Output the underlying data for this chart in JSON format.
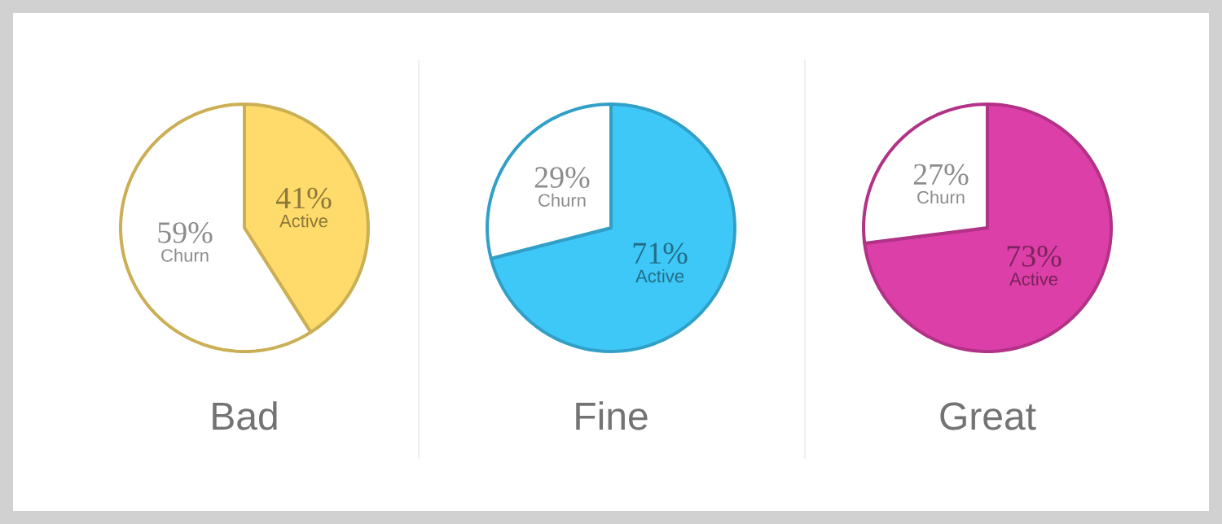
{
  "chart_data": [
    {
      "type": "pie",
      "title": "Bad",
      "categories": [
        "Churn",
        "Active"
      ],
      "values": [
        59,
        41
      ],
      "value_labels": [
        "59%",
        "41%"
      ],
      "colors": [
        "#ffffff",
        "#fedb6a"
      ]
    },
    {
      "type": "pie",
      "title": "Fine",
      "categories": [
        "Churn",
        "Active"
      ],
      "values": [
        29,
        71
      ],
      "value_labels": [
        "29%",
        "71%"
      ],
      "colors": [
        "#ffffff",
        "#3ec8f8"
      ]
    },
    {
      "type": "pie",
      "title": "Great",
      "categories": [
        "Churn",
        "Active"
      ],
      "values": [
        27,
        73
      ],
      "value_labels": [
        "27%",
        "73%"
      ],
      "colors": [
        "#ffffff",
        "#dd3fa8"
      ]
    }
  ]
}
